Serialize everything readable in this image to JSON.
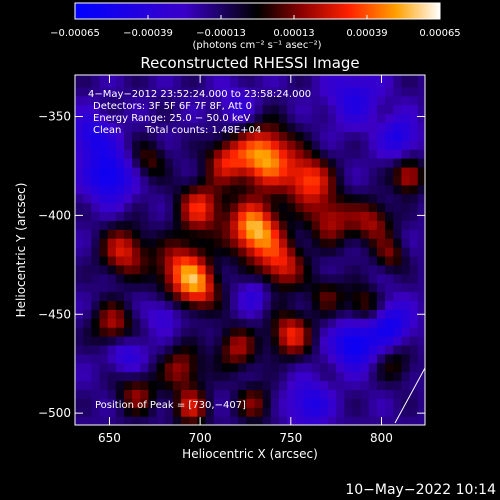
{
  "chart_data": {
    "type": "heatmap",
    "title": "Reconstructed RHESSI Image",
    "xlabel": "Heliocentric X (arcsec)",
    "ylabel": "Heliocentric Y (arcsec)",
    "xlim": [
      631,
      824
    ],
    "ylim": [
      -506,
      -329
    ],
    "x_ticks": [
      650,
      700,
      750,
      800
    ],
    "y_ticks": [
      -350,
      -400,
      -450,
      -500
    ],
    "x_tick_labels": [
      "650",
      "700",
      "750",
      "800"
    ],
    "y_tick_labels": [
      "−350",
      "−400",
      "−450",
      "−500"
    ],
    "colorbar": {
      "min": -0.00065,
      "max": 0.00065,
      "tick_values": [
        -0.00065,
        -0.00039,
        -0.00013,
        0.00013,
        0.00039,
        0.00065
      ],
      "tick_labels": [
        "−0.00065",
        "−0.00039",
        "−0.00013",
        "0.00013",
        "0.00039",
        "0.00065"
      ],
      "units_label": "(photons cm⁻² s⁻¹ asec⁻²)"
    },
    "annotations": [
      "4−May−2012 23:52:24.000 to 23:58:24.000",
      "Detectors: 3F 5F 6F 7F 8F, Att 0",
      "Energy Range: 25.0 − 50.0 keV",
      "Clean",
      "Total counts: 1.48E+04"
    ],
    "peak_label": "Position of Peak = [730,−407]",
    "peak": [
      730,
      -407
    ],
    "grid": false,
    "sources": [
      {
        "x": 736,
        "y": -370,
        "amp": 0.00068,
        "r": 11
      },
      {
        "x": 730,
        "y": -407,
        "amp": 0.00072,
        "r": 10
      },
      {
        "x": 760,
        "y": -382,
        "amp": 0.00052,
        "r": 9
      },
      {
        "x": 714,
        "y": -372,
        "amp": 0.0004,
        "r": 8
      },
      {
        "x": 700,
        "y": -396,
        "amp": 0.00048,
        "r": 9
      },
      {
        "x": 690,
        "y": -427,
        "amp": 0.00052,
        "r": 10
      },
      {
        "x": 658,
        "y": -418,
        "amp": 0.00045,
        "r": 9
      },
      {
        "x": 700,
        "y": -437,
        "amp": 0.00042,
        "r": 8
      },
      {
        "x": 745,
        "y": -425,
        "amp": 0.00045,
        "r": 9
      },
      {
        "x": 772,
        "y": -402,
        "amp": 0.00038,
        "r": 9
      },
      {
        "x": 795,
        "y": -403,
        "amp": 0.00036,
        "r": 8
      },
      {
        "x": 815,
        "y": -380,
        "amp": 0.00045,
        "r": 6
      },
      {
        "x": 750,
        "y": -460,
        "amp": 0.00048,
        "r": 8
      },
      {
        "x": 720,
        "y": -467,
        "amp": 0.00036,
        "r": 8
      },
      {
        "x": 690,
        "y": -477,
        "amp": 0.00035,
        "r": 8
      },
      {
        "x": 665,
        "y": -490,
        "amp": 0.00032,
        "r": 8
      },
      {
        "x": 695,
        "y": -497,
        "amp": 0.0004,
        "r": 7
      },
      {
        "x": 730,
        "y": -495,
        "amp": 0.0003,
        "r": 7
      },
      {
        "x": 652,
        "y": -455,
        "amp": 0.00038,
        "r": 8
      },
      {
        "x": 790,
        "y": -445,
        "amp": 0.0003,
        "r": 7
      },
      {
        "x": 805,
        "y": -420,
        "amp": 0.00028,
        "r": 6
      },
      {
        "x": 672,
        "y": -372,
        "amp": 0.00026,
        "r": 7
      },
      {
        "x": 770,
        "y": -440,
        "amp": 0.00025,
        "r": 7
      },
      {
        "x": 808,
        "y": -475,
        "amp": 0.00022,
        "r": 7
      },
      {
        "x": 650,
        "y": -380,
        "amp": -0.00042,
        "r": 9
      },
      {
        "x": 640,
        "y": -360,
        "amp": -0.0003,
        "r": 8
      },
      {
        "x": 785,
        "y": -340,
        "amp": -0.00025,
        "r": 10
      },
      {
        "x": 785,
        "y": -465,
        "amp": -0.00045,
        "r": 8
      },
      {
        "x": 805,
        "y": -455,
        "amp": -0.00035,
        "r": 8
      },
      {
        "x": 730,
        "y": -440,
        "amp": -0.0002,
        "r": 6
      },
      {
        "x": 660,
        "y": -470,
        "amp": -0.00025,
        "r": 7
      },
      {
        "x": 760,
        "y": -495,
        "amp": -0.0003,
        "r": 8
      },
      {
        "x": 810,
        "y": -360,
        "amp": -0.0003,
        "r": 7
      },
      {
        "x": 680,
        "y": -450,
        "amp": -0.0002,
        "r": 6
      },
      {
        "x": 720,
        "y": -345,
        "amp": -0.00015,
        "r": 8
      }
    ]
  },
  "timestamp": "10−May−2022 10:14"
}
